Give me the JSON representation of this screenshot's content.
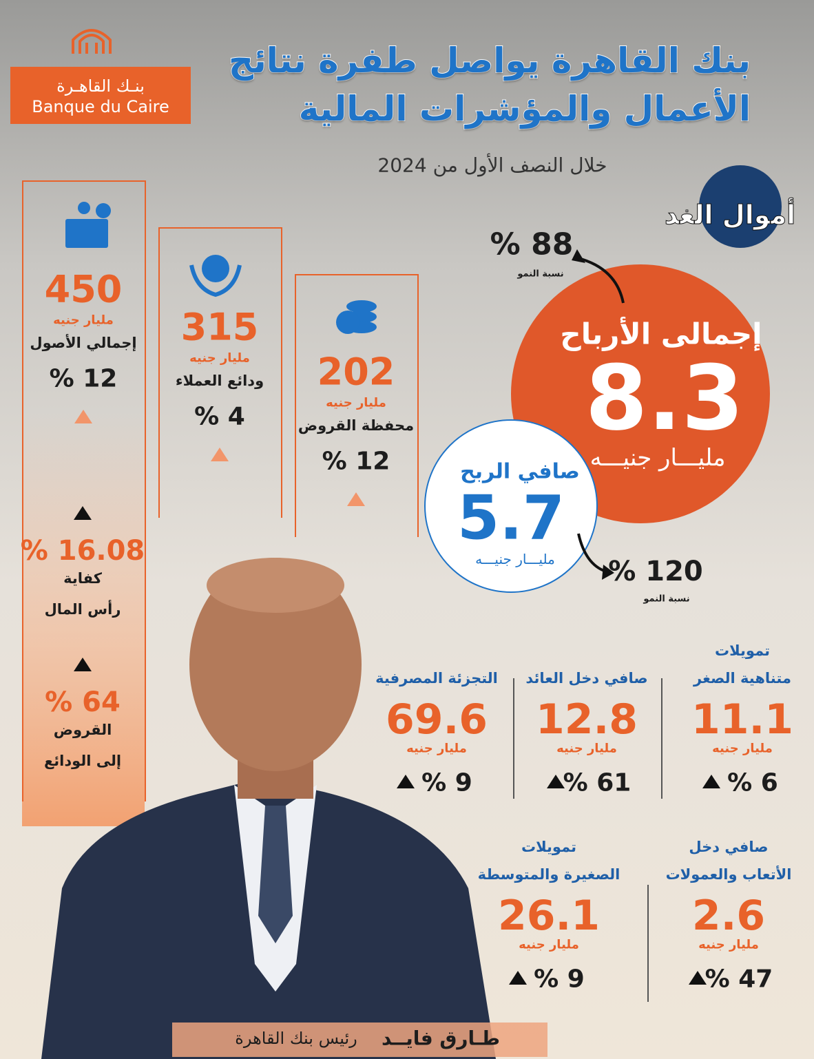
{
  "header": {
    "logo_ar": "بنـك القاهـرة",
    "logo_fr": "Banque du Caire",
    "title": [
      "بنك القاهرة يواصل طفرة نتائج",
      "الأعمال والمؤشرات المالية"
    ],
    "subtitle": "خلال النصف الأول من 2024",
    "brand": "أموال الغد"
  },
  "columns": [
    {
      "value": "450",
      "unit": "مليار جنيه",
      "label": "إجمالي الأصول",
      "growth": "12 %"
    },
    {
      "value": "315",
      "unit": "مليار جنيه",
      "label": "ودائع العملاء",
      "growth": "4 %"
    },
    {
      "value": "202",
      "unit": "مليار جنيه",
      "label": "محفظة القروض",
      "growth": "12 %"
    }
  ],
  "ratios": [
    {
      "value": "16.08 %",
      "label": [
        "كفاية",
        "رأس المال"
      ]
    },
    {
      "value": "64 %",
      "label": [
        "القروض",
        "إلى الودائع"
      ]
    }
  ],
  "total_profit": {
    "label": "إجمالى الأرباح",
    "value": "8.3",
    "unit": "مليـــار جنيـــه",
    "growth": "88 %",
    "growth_label": "نسبة النمو"
  },
  "net_profit": {
    "label": "صافي الربح",
    "value": "5.7",
    "unit": "مليـــار جنيـــه",
    "growth": "120 %",
    "growth_label": "نسبة النمو"
  },
  "metrics": [
    {
      "label": [
        "تمويلات",
        "متناهية الصغر"
      ],
      "value": "11.1",
      "unit": "مليار جنيه",
      "growth": "6 %"
    },
    {
      "label": [
        "صافي دخل العائد"
      ],
      "value": "12.8",
      "unit": "مليار جنيه",
      "growth": "61 %"
    },
    {
      "label": [
        "التجزئة المصرفية"
      ],
      "value": "69.6",
      "unit": "مليار جنيه",
      "growth": "9 %"
    },
    {
      "label": [
        "صافي دخل",
        "الأتعاب والعمولات"
      ],
      "value": "2.6",
      "unit": "مليار جنيه",
      "growth": "47 %"
    },
    {
      "label": [
        "تمويلات",
        "الصغيرة والمتوسطة"
      ],
      "value": "26.1",
      "unit": "مليار جنيه",
      "growth": "9 %"
    }
  ],
  "footer": {
    "name": "طـارق فايــد",
    "role": "رئيس بنك القاهرة"
  }
}
